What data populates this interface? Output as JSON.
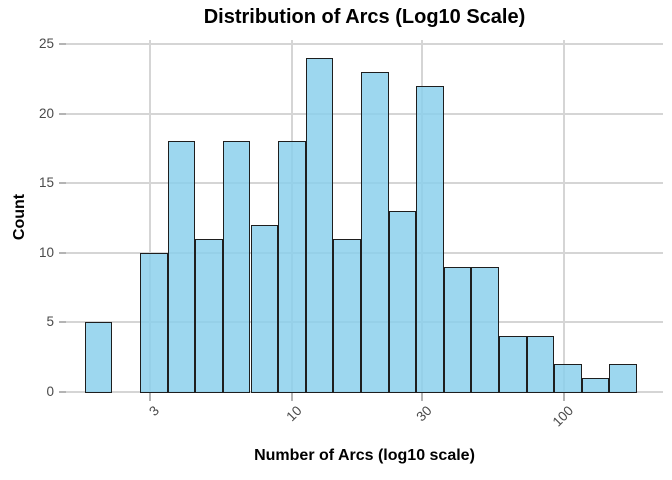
{
  "chart_data": {
    "type": "bar",
    "subtype": "histogram",
    "title": "Distribution of Arcs (Log10 Scale)",
    "xlabel": "Number of Arcs (log10 scale)",
    "ylabel": "Count",
    "x_scale": "log10",
    "x_tick_values": [
      3,
      10,
      30,
      100
    ],
    "x_tick_labels": [
      "3",
      "10",
      "30",
      "100"
    ],
    "y_tick_values": [
      0,
      5,
      10,
      15,
      20,
      25
    ],
    "y_tick_labels": [
      "0",
      "5",
      "10",
      "15",
      "20",
      "25"
    ],
    "ylim": [
      0,
      25.3
    ],
    "grid": true,
    "legend": "none",
    "counts": [
      5,
      0,
      10,
      18,
      11,
      18,
      12,
      18,
      24,
      11,
      23,
      13,
      22,
      9,
      9,
      4,
      4,
      2,
      1,
      2
    ],
    "bin_start_log10": 0.2385,
    "bin_width_log10": 0.1015,
    "bin_edges_approx": [
      1.7,
      2.2,
      2.8,
      3.5,
      4.4,
      5.6,
      7.0,
      8.9,
      11.2,
      14.2,
      17.9,
      22.7,
      28.6,
      36.1,
      45.7,
      57.7,
      72.9,
      92.0,
      116.3,
      146.9,
      185.6
    ],
    "colors": {
      "bar_fill": "#87CEEB",
      "bar_fill_alpha": 0.82,
      "bar_border": "#1e1e1e",
      "grid": "#d5d5d5",
      "tick": "#b4b4b4",
      "tick_label": "#4a4a4a",
      "title": "#000000",
      "background": "#ffffff"
    }
  }
}
